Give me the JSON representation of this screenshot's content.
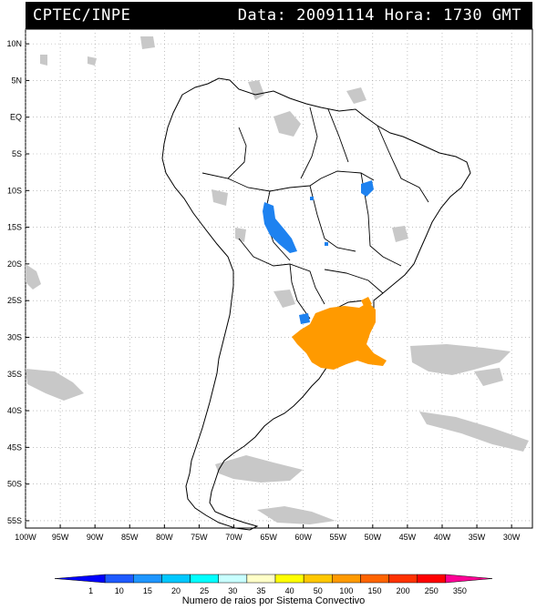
{
  "header": {
    "source": "CPTEC/INPE",
    "datetime": "Data: 20091114 Hora: 1730 GMT"
  },
  "map": {
    "lat_labels": [
      "10N",
      "5N",
      "EQ",
      "5S",
      "10S",
      "15S",
      "20S",
      "25S",
      "30S",
      "35S",
      "40S",
      "45S",
      "50S",
      "55S"
    ],
    "lon_labels": [
      "100W",
      "95W",
      "90W",
      "85W",
      "80W",
      "75W",
      "70W",
      "65W",
      "60W",
      "55W",
      "50W",
      "45W",
      "40W",
      "35W",
      "30W"
    ],
    "lat_range": [
      -56,
      12
    ],
    "lon_range": [
      -100,
      -27
    ],
    "grid": "dotted",
    "colors": {
      "clouds": "#c8c8c8",
      "low_density_lightning": "#1e82f0",
      "high_density_lightning": "#ff9a00"
    }
  },
  "colorbar": {
    "ticks": [
      "1",
      "10",
      "15",
      "20",
      "25",
      "30",
      "35",
      "40",
      "50",
      "100",
      "150",
      "200",
      "250",
      "350"
    ],
    "colors": [
      "#0000ff",
      "#1e5aff",
      "#1e96ff",
      "#00c8ff",
      "#00ffff",
      "#c8ffff",
      "#ffffc8",
      "#ffff00",
      "#ffc800",
      "#ff9a00",
      "#ff6400",
      "#ff3200",
      "#ff0000",
      "#ff0096"
    ],
    "caption": "Numero de raios por Sistema Convectivo"
  }
}
